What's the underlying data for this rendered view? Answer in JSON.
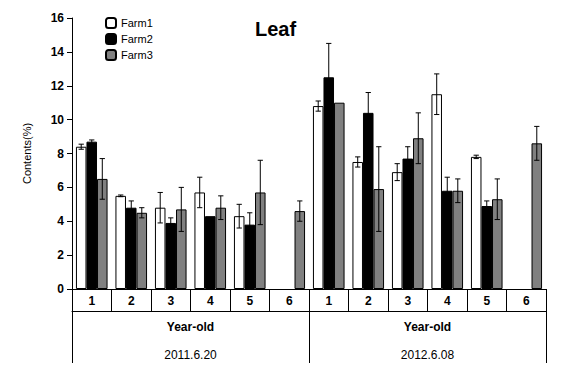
{
  "chart_data": {
    "type": "bar",
    "title": "Leaf",
    "y_label": "Contents(%)",
    "categories": [
      "1",
      "2",
      "3",
      "4",
      "5",
      "6",
      "1",
      "2",
      "3",
      "4",
      "5",
      "6"
    ],
    "group_labels": [
      "Year-old",
      "Year-old"
    ],
    "group_dates": [
      "2011.6.20",
      "2012.6.08"
    ],
    "series": [
      {
        "name": "Farm1",
        "color": "#ffffff",
        "values": [
          8.4,
          5.5,
          4.8,
          5.7,
          4.3,
          null,
          10.8,
          7.5,
          6.9,
          11.5,
          7.8,
          null
        ],
        "errors": [
          0.15,
          0.05,
          0.9,
          0.9,
          0.7,
          null,
          0.3,
          0.3,
          0.5,
          1.2,
          0.1,
          null
        ]
      },
      {
        "name": "Farm2",
        "color": "#000000",
        "values": [
          8.7,
          4.8,
          3.9,
          4.3,
          3.8,
          null,
          12.5,
          10.4,
          7.7,
          5.8,
          4.9,
          null
        ],
        "errors": [
          0.1,
          0.4,
          0.3,
          null,
          0.7,
          null,
          2.0,
          1.2,
          0.7,
          0.8,
          0.3,
          null
        ]
      },
      {
        "name": "Farm3",
        "color": "#808080",
        "values": [
          6.5,
          4.5,
          4.7,
          4.8,
          5.7,
          4.6,
          11.0,
          5.9,
          8.9,
          5.8,
          5.3,
          8.6
        ],
        "errors": [
          1.2,
          0.3,
          1.3,
          0.7,
          1.9,
          0.6,
          null,
          2.5,
          1.5,
          0.7,
          1.2,
          1.0
        ]
      }
    ],
    "ylim": [
      0,
      16
    ],
    "yticks": [
      0,
      2,
      4,
      6,
      8,
      10,
      12,
      14,
      16
    ],
    "grid": false,
    "legend": "upper left"
  }
}
